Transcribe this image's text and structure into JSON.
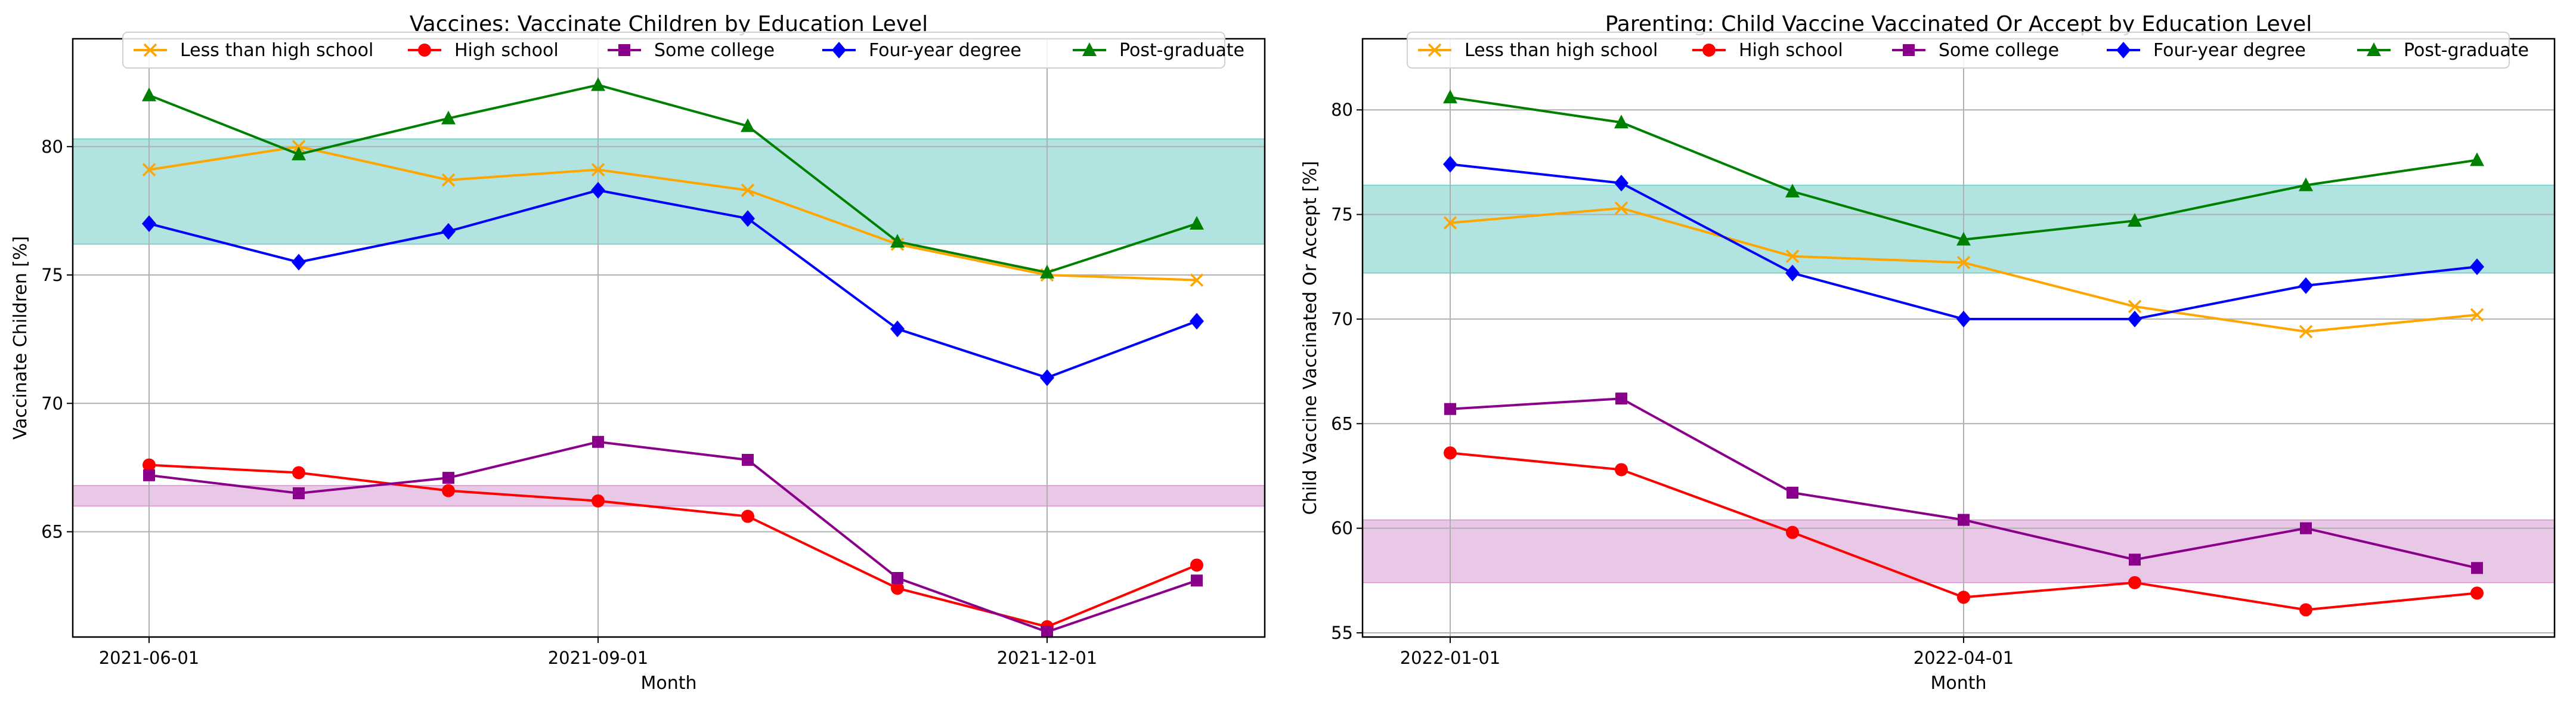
{
  "chart_data": [
    {
      "type": "line",
      "title": "Vaccines: Vaccinate Children by Education Level",
      "xlabel": "Month",
      "ylabel": "Vaccinate Children [%]",
      "x": [
        "2021-06-01",
        "2021-07-01",
        "2021-08-01",
        "2021-09-01",
        "2021-10-01",
        "2021-11-01",
        "2021-12-01",
        "2022-01-01"
      ],
      "x_tick_labels": [
        "2021-06-01",
        "2021-09-01",
        "2021-12-01"
      ],
      "x_tick_indices": [
        0,
        3,
        6
      ],
      "y_ticks": [
        65,
        70,
        75,
        80
      ],
      "ylim": [
        60.9,
        84.2
      ],
      "grid": true,
      "legend_position": "top-center",
      "bands": [
        {
          "name": "band-1",
          "y_low": 76.2,
          "y_high": 80.3,
          "color": "#20b2aa"
        },
        {
          "name": "band-2",
          "y_low": 66.0,
          "y_high": 66.8,
          "color": "#c05fb8"
        }
      ],
      "series": [
        {
          "name": "Less than high school",
          "color": "#ffa500",
          "marker": "x",
          "values": [
            79.1,
            80.0,
            78.7,
            79.1,
            78.3,
            76.2,
            75.0,
            74.8
          ]
        },
        {
          "name": "High school",
          "color": "#ff0000",
          "marker": "circle",
          "values": [
            67.6,
            67.3,
            66.6,
            66.2,
            65.6,
            62.8,
            61.3,
            63.7
          ]
        },
        {
          "name": "Some college",
          "color": "#8b008b",
          "marker": "square",
          "values": [
            67.2,
            66.5,
            67.1,
            68.5,
            67.8,
            63.2,
            61.1,
            63.1
          ]
        },
        {
          "name": "Four-year degree",
          "color": "#0000ff",
          "marker": "diamond",
          "values": [
            77.0,
            75.5,
            76.7,
            78.3,
            77.2,
            72.9,
            71.0,
            73.2
          ]
        },
        {
          "name": "Post-graduate",
          "color": "#008000",
          "marker": "triangle",
          "values": [
            82.0,
            79.7,
            81.1,
            82.4,
            80.8,
            76.3,
            75.1,
            77.0
          ]
        }
      ]
    },
    {
      "type": "line",
      "title": "Parenting: Child Vaccine Vaccinated Or Accept by Education Level",
      "xlabel": "Month",
      "ylabel": "Child Vaccine Vaccinated Or Accept [%]",
      "x": [
        "2022-01-01",
        "2022-02-01",
        "2022-03-01",
        "2022-04-01",
        "2022-05-01",
        "2022-06-01",
        "2022-07-01"
      ],
      "x_tick_labels": [
        "2022-01-01",
        "2022-04-01"
      ],
      "x_tick_indices": [
        0,
        3
      ],
      "y_ticks": [
        55,
        60,
        65,
        70,
        75,
        80
      ],
      "ylim": [
        54.8,
        83.4
      ],
      "grid": true,
      "legend_position": "top-center",
      "bands": [
        {
          "name": "band-1",
          "y_low": 72.2,
          "y_high": 76.4,
          "color": "#20b2aa"
        },
        {
          "name": "band-2",
          "y_low": 57.4,
          "y_high": 60.4,
          "color": "#c05fb8"
        }
      ],
      "series": [
        {
          "name": "Less than high school",
          "color": "#ffa500",
          "marker": "x",
          "values": [
            74.6,
            75.3,
            73.0,
            72.7,
            70.6,
            69.4,
            70.2
          ]
        },
        {
          "name": "High school",
          "color": "#ff0000",
          "marker": "circle",
          "values": [
            63.6,
            62.8,
            59.8,
            56.7,
            57.4,
            56.1,
            56.9
          ]
        },
        {
          "name": "Some college",
          "color": "#8b008b",
          "marker": "square",
          "values": [
            65.7,
            66.2,
            61.7,
            60.4,
            58.5,
            60.0,
            58.1
          ]
        },
        {
          "name": "Four-year degree",
          "color": "#0000ff",
          "marker": "diamond",
          "values": [
            77.4,
            76.5,
            72.2,
            70.0,
            70.0,
            71.6,
            72.5
          ]
        },
        {
          "name": "Post-graduate",
          "color": "#008000",
          "marker": "triangle",
          "values": [
            80.6,
            79.4,
            76.1,
            73.8,
            74.7,
            76.4,
            77.6
          ]
        }
      ]
    }
  ]
}
